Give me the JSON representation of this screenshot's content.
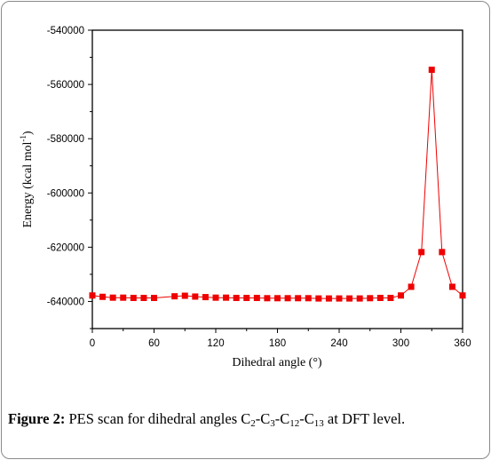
{
  "chart_data": {
    "type": "line",
    "xlabel": "Dihedral angle (°)",
    "ylabel_parts": {
      "main": "Energy (kcal mol",
      "sup": "-1",
      "close": ")"
    },
    "xlim": [
      0,
      360
    ],
    "ylim": [
      -650000,
      -540000
    ],
    "x_ticks": [
      0,
      60,
      120,
      180,
      240,
      300,
      360
    ],
    "y_ticks": [
      -540000,
      -560000,
      -580000,
      -600000,
      -620000,
      -640000
    ],
    "x_tick_labels": [
      "0",
      "60",
      "120",
      "180",
      "240",
      "300",
      "360"
    ],
    "y_tick_labels": [
      "-540000",
      "-560000",
      "-580000",
      "-600000",
      "-620000",
      "-640000"
    ],
    "grid": false,
    "marker": "square",
    "series": [
      {
        "color": "#ee0000",
        "x": [
          0,
          10,
          20,
          30,
          40,
          50,
          60,
          80,
          90,
          100,
          110,
          120,
          130,
          140,
          150,
          160,
          170,
          180,
          190,
          200,
          210,
          220,
          230,
          240,
          250,
          260,
          270,
          280,
          290,
          300,
          310,
          320,
          330,
          340,
          350,
          360
        ],
        "y": [
          -637800,
          -638300,
          -638600,
          -638600,
          -638700,
          -638700,
          -638700,
          -638100,
          -637900,
          -638200,
          -638400,
          -638600,
          -638600,
          -638700,
          -638700,
          -638700,
          -638800,
          -638800,
          -638800,
          -638800,
          -638800,
          -638900,
          -638900,
          -638900,
          -638900,
          -638900,
          -638800,
          -638700,
          -638700,
          -637800,
          -634600,
          -621800,
          -554600,
          -621800,
          -634600,
          -637800
        ]
      }
    ]
  },
  "caption": {
    "label": "Figure 2:",
    "text_before": " PES scan for dihedral angles C",
    "subs": [
      "2",
      "3",
      "12",
      "13"
    ],
    "joiner": "-C",
    "text_after": " at DFT level."
  }
}
